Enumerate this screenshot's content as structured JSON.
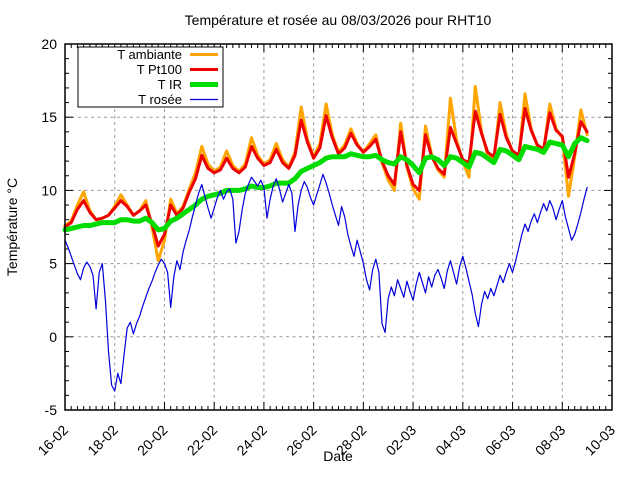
{
  "title": "Température et rosée au 08/03/2026 pour RHT10",
  "chart_data": {
    "type": "line",
    "title": "Température et rosée au 08/03/2026 pour RHT10",
    "xlabel": "Date",
    "ylabel": "Température °C",
    "ylim": [
      -5,
      20
    ],
    "xlim_days": [
      0,
      22
    ],
    "grid": true,
    "legend_position": "top-left",
    "background": "#ffffff",
    "grid_color": "#9a9a9a",
    "axis_color": "#000000",
    "x_axis": {
      "tick_days": [
        0,
        2,
        4,
        6,
        8,
        10,
        12,
        14,
        16,
        18,
        20,
        22
      ],
      "tick_labels": [
        "16-02",
        "18-02",
        "20-02",
        "22-02",
        "24-02",
        "26-02",
        "28-02",
        "02-03",
        "04-03",
        "06-03",
        "08-03",
        "10-03"
      ],
      "minor_tick_step_days": 0.25
    },
    "y_axis": {
      "tick_values": [
        -5,
        0,
        5,
        10,
        15,
        20
      ],
      "tick_labels": [
        "-5",
        "0",
        "5",
        "10",
        "15",
        "20"
      ],
      "minor_tick_step": 1
    },
    "series": [
      {
        "name": "T ambiante",
        "color": "#FFA500",
        "line_width": 3,
        "x_start_day": 0,
        "x_step_days": 0.25,
        "values": [
          7.6,
          7.9,
          9.0,
          9.9,
          8.6,
          8.0,
          8.1,
          8.3,
          8.9,
          9.7,
          9.0,
          8.3,
          8.6,
          9.3,
          7.5,
          5.2,
          6.6,
          9.4,
          8.4,
          8.9,
          10.1,
          11.2,
          13.0,
          11.8,
          11.3,
          11.6,
          12.7,
          11.7,
          11.3,
          11.8,
          13.6,
          12.4,
          11.8,
          12.1,
          13.2,
          12.1,
          11.6,
          12.6,
          15.7,
          13.5,
          12.3,
          13.2,
          15.9,
          13.8,
          12.6,
          13.1,
          14.2,
          13.2,
          12.6,
          13.2,
          13.8,
          11.9,
          10.7,
          10.0,
          14.6,
          11.6,
          10.1,
          9.4,
          14.4,
          12.4,
          11.4,
          10.9,
          16.3,
          13.4,
          12.0,
          10.9,
          17.1,
          14.0,
          12.4,
          12.0,
          16.0,
          13.8,
          12.6,
          12.2,
          16.6,
          14.2,
          13.0,
          12.7,
          15.9,
          14.2,
          13.6,
          9.6,
          12.3,
          15.5,
          13.8
        ]
      },
      {
        "name": "T Pt100",
        "color": "#EE0000",
        "line_width": 3,
        "x_start_day": 0,
        "x_step_days": 0.25,
        "values": [
          7.5,
          7.8,
          8.7,
          9.3,
          8.5,
          8.0,
          8.1,
          8.3,
          8.8,
          9.3,
          8.9,
          8.3,
          8.6,
          9.0,
          7.7,
          6.2,
          7.0,
          9.0,
          8.3,
          8.8,
          9.9,
          10.8,
          12.4,
          11.5,
          11.2,
          11.4,
          12.2,
          11.5,
          11.2,
          11.6,
          13.0,
          12.2,
          11.7,
          11.9,
          12.8,
          11.9,
          11.5,
          12.4,
          14.8,
          13.3,
          12.2,
          12.9,
          15.1,
          13.6,
          12.5,
          12.9,
          13.9,
          13.1,
          12.6,
          13.0,
          13.5,
          12.0,
          11.0,
          10.4,
          14.0,
          11.7,
          10.4,
          10.0,
          13.8,
          12.3,
          11.5,
          11.1,
          14.3,
          13.2,
          12.1,
          11.9,
          15.4,
          13.9,
          12.6,
          12.3,
          15.2,
          13.6,
          12.7,
          12.4,
          15.6,
          14.1,
          13.1,
          12.8,
          15.3,
          14.1,
          13.7,
          10.9,
          12.5,
          14.7,
          14.0
        ]
      },
      {
        "name": "T IR",
        "color": "#00DC00",
        "line_width": 5,
        "x_start_day": 0,
        "x_step_days": 0.25,
        "values": [
          7.3,
          7.4,
          7.5,
          7.6,
          7.6,
          7.7,
          7.8,
          7.8,
          7.8,
          8.0,
          8.0,
          7.9,
          7.9,
          8.1,
          7.8,
          7.3,
          7.4,
          7.9,
          8.1,
          8.4,
          8.7,
          9.0,
          9.4,
          9.6,
          9.7,
          9.8,
          10.0,
          10.0,
          10.0,
          10.1,
          10.3,
          10.2,
          10.2,
          10.3,
          10.5,
          10.5,
          10.5,
          10.8,
          11.3,
          11.5,
          11.7,
          11.9,
          12.2,
          12.3,
          12.3,
          12.3,
          12.5,
          12.4,
          12.3,
          12.3,
          12.4,
          12.1,
          11.9,
          11.8,
          12.3,
          12.1,
          11.7,
          11.2,
          12.2,
          12.3,
          12.1,
          11.7,
          12.3,
          12.2,
          11.9,
          11.6,
          12.6,
          12.5,
          12.2,
          11.9,
          12.8,
          12.7,
          12.4,
          12.1,
          13.0,
          12.9,
          12.8,
          12.6,
          13.3,
          13.2,
          13.1,
          12.3,
          13.2,
          13.6,
          13.4
        ]
      },
      {
        "name": "T rosée",
        "color": "#0000DD",
        "line_width": 1.2,
        "x_start_day": 0,
        "x_step_days": 0.125,
        "values": [
          6.6,
          6.1,
          5.5,
          4.9,
          4.3,
          3.9,
          4.7,
          5.1,
          4.8,
          4.2,
          1.9,
          4.4,
          5.0,
          2.5,
          -1.0,
          -3.3,
          -3.7,
          -2.5,
          -3.2,
          -1.2,
          0.6,
          1.0,
          0.2,
          0.9,
          1.4,
          2.1,
          2.7,
          3.3,
          3.8,
          4.4,
          4.9,
          5.3,
          5.0,
          4.4,
          2.0,
          4.1,
          5.2,
          4.6,
          5.8,
          6.6,
          7.3,
          8.2,
          9.0,
          9.8,
          10.4,
          9.6,
          8.8,
          8.1,
          8.8,
          9.5,
          10.0,
          9.4,
          9.9,
          10.1,
          9.4,
          6.4,
          7.2,
          8.7,
          9.8,
          10.4,
          10.9,
          10.6,
          10.3,
          10.7,
          10.2,
          8.1,
          9.4,
          10.3,
          10.8,
          10.1,
          9.2,
          9.8,
          10.4,
          9.8,
          7.2,
          9.0,
          10.0,
          10.6,
          10.2,
          9.5,
          9.0,
          9.7,
          10.4,
          11.1,
          10.5,
          9.8,
          9.0,
          8.3,
          7.6,
          8.9,
          8.2,
          7.0,
          6.2,
          5.5,
          6.6,
          5.8,
          5.0,
          3.9,
          3.2,
          4.6,
          5.3,
          4.4,
          0.9,
          0.3,
          2.6,
          3.4,
          2.8,
          3.9,
          3.3,
          2.7,
          3.8,
          3.1,
          2.5,
          3.6,
          4.4,
          3.7,
          3.0,
          4.1,
          3.4,
          4.2,
          4.6,
          4.0,
          3.3,
          4.5,
          5.2,
          4.4,
          3.6,
          4.8,
          5.5,
          4.7,
          3.8,
          2.9,
          1.6,
          0.7,
          2.2,
          3.1,
          2.6,
          3.3,
          2.8,
          3.5,
          4.2,
          3.7,
          4.4,
          5.0,
          4.4,
          5.2,
          6.1,
          7.0,
          7.7,
          7.2,
          7.9,
          8.4,
          7.8,
          8.5,
          9.1,
          8.6,
          9.3,
          8.8,
          8.0,
          8.7,
          9.3,
          8.2,
          7.4,
          6.6,
          7.0,
          7.7,
          8.5,
          9.4,
          10.2
        ]
      }
    ]
  }
}
